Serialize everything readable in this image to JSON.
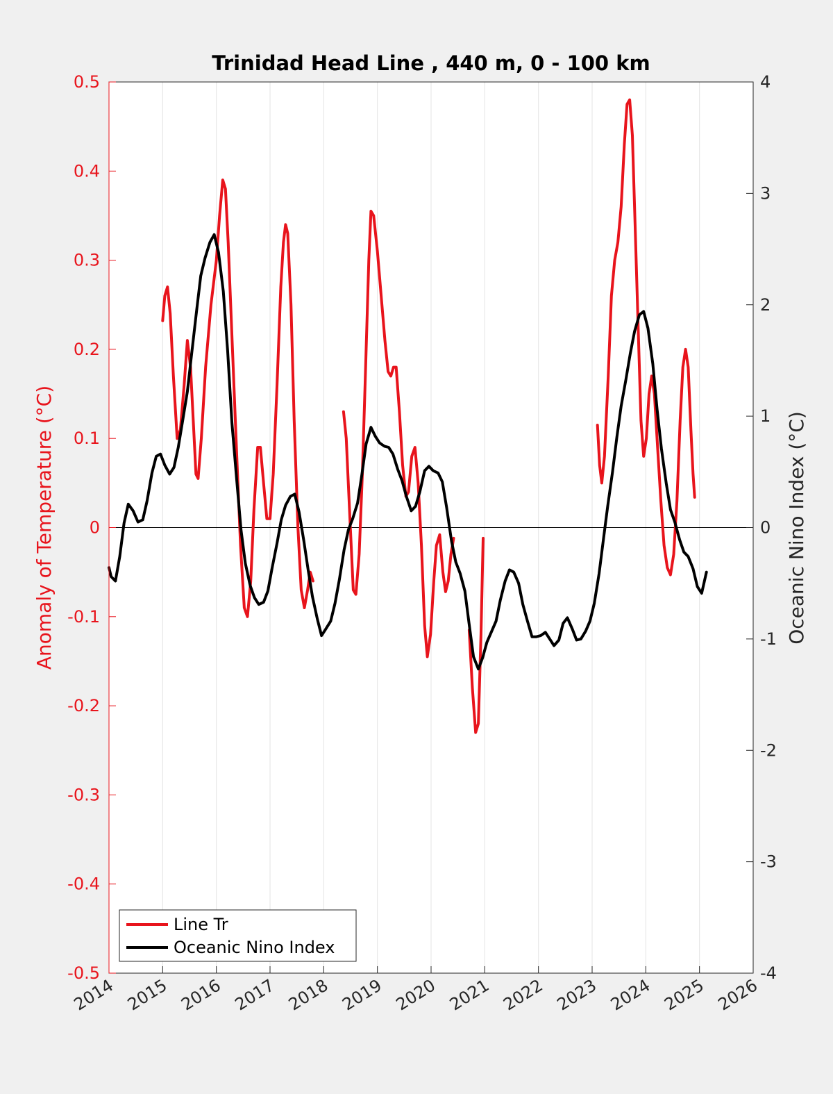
{
  "chart_data": {
    "type": "line",
    "title": "Trinidad Head Line , 440 m, 0 - 100 km",
    "ylabel": "Anomaly of Temperature (°C)",
    "y2label": "Oceanic Nino Index (°C)",
    "xlabel": "",
    "xlim": [
      2014,
      2026
    ],
    "ylim": [
      -0.5,
      0.5
    ],
    "y2lim": [
      -4,
      4
    ],
    "x_ticks": [
      "2014",
      "2015",
      "2016",
      "2017",
      "2018",
      "2019",
      "2020",
      "2021",
      "2022",
      "2023",
      "2024",
      "2025",
      "2026"
    ],
    "y_ticks": [
      "-0.5",
      "-0.4",
      "-0.3",
      "-0.2",
      "-0.1",
      "0",
      "0.1",
      "0.2",
      "0.3",
      "0.4",
      "0.5"
    ],
    "y2_ticks": [
      "-4",
      "-3",
      "-2",
      "-1",
      "0",
      "1",
      "2",
      "3",
      "4"
    ],
    "grid": "vertical",
    "legend_position": "bottom-left",
    "colors": {
      "line_tr": "#e8141c",
      "oni": "#000000",
      "left_axis": "#e8141c",
      "right_axis": "#262626"
    },
    "series": [
      {
        "name": "Line Tr",
        "axis": "left",
        "segments": [
          [
            [
              2015.0,
              0.232
            ],
            [
              2015.04,
              0.26
            ],
            [
              2015.09,
              0.27
            ],
            [
              2015.14,
              0.24
            ],
            [
              2015.2,
              0.17
            ],
            [
              2015.27,
              0.1
            ],
            [
              2015.33,
              0.11
            ],
            [
              2015.4,
              0.16
            ],
            [
              2015.46,
              0.21
            ],
            [
              2015.52,
              0.18
            ],
            [
              2015.57,
              0.12
            ],
            [
              2015.62,
              0.06
            ],
            [
              2015.66,
              0.055
            ],
            [
              2015.72,
              0.1
            ],
            [
              2015.8,
              0.18
            ],
            [
              2015.9,
              0.25
            ],
            [
              2016.0,
              0.3
            ],
            [
              2016.06,
              0.35
            ],
            [
              2016.12,
              0.39
            ],
            [
              2016.17,
              0.38
            ],
            [
              2016.22,
              0.32
            ],
            [
              2016.3,
              0.2
            ],
            [
              2016.38,
              0.08
            ],
            [
              2016.45,
              -0.02
            ],
            [
              2016.52,
              -0.09
            ],
            [
              2016.58,
              -0.1
            ],
            [
              2016.64,
              -0.06
            ],
            [
              2016.7,
              0.02
            ],
            [
              2016.77,
              0.09
            ],
            [
              2016.82,
              0.09
            ],
            [
              2016.88,
              0.05
            ],
            [
              2016.94,
              0.01
            ],
            [
              2017.0,
              0.01
            ],
            [
              2017.06,
              0.06
            ],
            [
              2017.13,
              0.16
            ],
            [
              2017.2,
              0.27
            ],
            [
              2017.25,
              0.32
            ],
            [
              2017.29,
              0.34
            ],
            [
              2017.33,
              0.33
            ],
            [
              2017.39,
              0.25
            ],
            [
              2017.45,
              0.12
            ],
            [
              2017.52,
              0.0
            ],
            [
              2017.58,
              -0.07
            ],
            [
              2017.64,
              -0.09
            ],
            [
              2017.7,
              -0.07
            ],
            [
              2017.75,
              -0.05
            ],
            [
              2017.8,
              -0.06
            ]
          ],
          [
            [
              2018.37,
              0.13
            ],
            [
              2018.42,
              0.1
            ],
            [
              2018.48,
              0.02
            ],
            [
              2018.55,
              -0.07
            ],
            [
              2018.6,
              -0.075
            ],
            [
              2018.66,
              -0.03
            ],
            [
              2018.72,
              0.06
            ],
            [
              2018.78,
              0.18
            ],
            [
              2018.84,
              0.3
            ],
            [
              2018.88,
              0.355
            ],
            [
              2018.93,
              0.35
            ],
            [
              2019.0,
              0.31
            ],
            [
              2019.07,
              0.26
            ],
            [
              2019.14,
              0.21
            ],
            [
              2019.2,
              0.175
            ],
            [
              2019.25,
              0.17
            ],
            [
              2019.3,
              0.18
            ],
            [
              2019.35,
              0.18
            ],
            [
              2019.41,
              0.13
            ],
            [
              2019.47,
              0.07
            ],
            [
              2019.53,
              0.035
            ],
            [
              2019.58,
              0.04
            ],
            [
              2019.64,
              0.08
            ],
            [
              2019.7,
              0.09
            ],
            [
              2019.76,
              0.05
            ],
            [
              2019.82,
              -0.02
            ],
            [
              2019.88,
              -0.11
            ],
            [
              2019.93,
              -0.145
            ],
            [
              2019.99,
              -0.12
            ],
            [
              2020.05,
              -0.06
            ],
            [
              2020.1,
              -0.02
            ],
            [
              2020.16,
              -0.008
            ],
            [
              2020.22,
              -0.05
            ],
            [
              2020.27,
              -0.072
            ],
            [
              2020.32,
              -0.06
            ],
            [
              2020.37,
              -0.03
            ],
            [
              2020.42,
              -0.012
            ]
          ],
          [
            [
              2020.71,
              -0.115
            ],
            [
              2020.77,
              -0.18
            ],
            [
              2020.83,
              -0.23
            ],
            [
              2020.88,
              -0.22
            ],
            [
              2020.93,
              -0.12
            ],
            [
              2020.97,
              -0.012
            ]
          ],
          [
            [
              2023.1,
              0.115
            ],
            [
              2023.14,
              0.07
            ],
            [
              2023.18,
              0.05
            ],
            [
              2023.23,
              0.08
            ],
            [
              2023.3,
              0.17
            ],
            [
              2023.36,
              0.26
            ],
            [
              2023.42,
              0.3
            ],
            [
              2023.48,
              0.32
            ],
            [
              2023.54,
              0.36
            ],
            [
              2023.6,
              0.43
            ],
            [
              2023.65,
              0.475
            ],
            [
              2023.7,
              0.48
            ],
            [
              2023.75,
              0.44
            ],
            [
              2023.8,
              0.34
            ],
            [
              2023.86,
              0.22
            ],
            [
              2023.91,
              0.12
            ],
            [
              2023.96,
              0.08
            ],
            [
              2024.01,
              0.1
            ],
            [
              2024.06,
              0.15
            ],
            [
              2024.11,
              0.17
            ],
            [
              2024.16,
              0.15
            ],
            [
              2024.22,
              0.09
            ],
            [
              2024.28,
              0.03
            ],
            [
              2024.34,
              -0.02
            ],
            [
              2024.4,
              -0.045
            ],
            [
              2024.46,
              -0.053
            ],
            [
              2024.52,
              -0.03
            ],
            [
              2024.58,
              0.03
            ],
            [
              2024.64,
              0.12
            ],
            [
              2024.69,
              0.18
            ],
            [
              2024.74,
              0.2
            ],
            [
              2024.79,
              0.18
            ],
            [
              2024.84,
              0.11
            ],
            [
              2024.88,
              0.06
            ],
            [
              2024.91,
              0.034
            ]
          ]
        ]
      },
      {
        "name": "Oceanic Nino Index",
        "axis": "right",
        "segments": [
          [
            [
              2014.0,
              -0.36
            ],
            [
              2014.04,
              -0.44
            ],
            [
              2014.12,
              -0.48
            ],
            [
              2014.2,
              -0.26
            ],
            [
              2014.28,
              0.04
            ],
            [
              2014.36,
              0.21
            ],
            [
              2014.45,
              0.15
            ],
            [
              2014.54,
              0.05
            ],
            [
              2014.63,
              0.07
            ],
            [
              2014.71,
              0.24
            ],
            [
              2014.8,
              0.49
            ],
            [
              2014.88,
              0.64
            ],
            [
              2014.96,
              0.66
            ],
            [
              2015.04,
              0.56
            ],
            [
              2015.13,
              0.48
            ],
            [
              2015.21,
              0.54
            ],
            [
              2015.29,
              0.72
            ],
            [
              2015.37,
              0.95
            ],
            [
              2015.46,
              1.22
            ],
            [
              2015.54,
              1.56
            ],
            [
              2015.63,
              1.94
            ],
            [
              2015.71,
              2.26
            ],
            [
              2015.79,
              2.42
            ],
            [
              2015.88,
              2.56
            ],
            [
              2015.96,
              2.63
            ],
            [
              2016.04,
              2.47
            ],
            [
              2016.13,
              2.12
            ],
            [
              2016.21,
              1.59
            ],
            [
              2016.29,
              0.94
            ],
            [
              2016.38,
              0.42
            ],
            [
              2016.46,
              -0.02
            ],
            [
              2016.54,
              -0.32
            ],
            [
              2016.63,
              -0.52
            ],
            [
              2016.71,
              -0.63
            ],
            [
              2016.79,
              -0.69
            ],
            [
              2016.88,
              -0.67
            ],
            [
              2016.96,
              -0.57
            ],
            [
              2017.04,
              -0.36
            ],
            [
              2017.13,
              -0.14
            ],
            [
              2017.21,
              0.07
            ],
            [
              2017.29,
              0.2
            ],
            [
              2017.38,
              0.28
            ],
            [
              2017.46,
              0.3
            ],
            [
              2017.54,
              0.14
            ],
            [
              2017.63,
              -0.12
            ],
            [
              2017.71,
              -0.38
            ],
            [
              2017.79,
              -0.62
            ],
            [
              2017.88,
              -0.82
            ],
            [
              2017.96,
              -0.97
            ],
            [
              2018.04,
              -0.91
            ],
            [
              2018.13,
              -0.84
            ],
            [
              2018.21,
              -0.68
            ],
            [
              2018.29,
              -0.47
            ],
            [
              2018.38,
              -0.2
            ],
            [
              2018.46,
              -0.02
            ],
            [
              2018.54,
              0.08
            ],
            [
              2018.63,
              0.22
            ],
            [
              2018.71,
              0.47
            ],
            [
              2018.79,
              0.75
            ],
            [
              2018.88,
              0.9
            ],
            [
              2018.96,
              0.82
            ],
            [
              2019.04,
              0.76
            ],
            [
              2019.13,
              0.73
            ],
            [
              2019.21,
              0.72
            ],
            [
              2019.29,
              0.66
            ],
            [
              2019.38,
              0.52
            ],
            [
              2019.46,
              0.42
            ],
            [
              2019.54,
              0.28
            ],
            [
              2019.63,
              0.15
            ],
            [
              2019.71,
              0.19
            ],
            [
              2019.79,
              0.32
            ],
            [
              2019.88,
              0.51
            ],
            [
              2019.96,
              0.55
            ],
            [
              2020.04,
              0.51
            ],
            [
              2020.13,
              0.49
            ],
            [
              2020.21,
              0.41
            ],
            [
              2020.29,
              0.18
            ],
            [
              2020.38,
              -0.12
            ],
            [
              2020.46,
              -0.31
            ],
            [
              2020.54,
              -0.41
            ],
            [
              2020.63,
              -0.57
            ],
            [
              2020.71,
              -0.87
            ],
            [
              2020.79,
              -1.16
            ],
            [
              2020.88,
              -1.27
            ],
            [
              2020.96,
              -1.17
            ],
            [
              2021.04,
              -1.03
            ],
            [
              2021.13,
              -0.93
            ],
            [
              2021.21,
              -0.84
            ],
            [
              2021.29,
              -0.65
            ],
            [
              2021.38,
              -0.48
            ],
            [
              2021.46,
              -0.38
            ],
            [
              2021.54,
              -0.4
            ],
            [
              2021.63,
              -0.5
            ],
            [
              2021.71,
              -0.69
            ],
            [
              2021.79,
              -0.83
            ],
            [
              2021.88,
              -0.98
            ],
            [
              2021.96,
              -0.98
            ],
            [
              2022.04,
              -0.97
            ],
            [
              2022.13,
              -0.94
            ],
            [
              2022.21,
              -1.0
            ],
            [
              2022.29,
              -1.06
            ],
            [
              2022.38,
              -1.01
            ],
            [
              2022.46,
              -0.86
            ],
            [
              2022.54,
              -0.81
            ],
            [
              2022.63,
              -0.91
            ],
            [
              2022.71,
              -1.01
            ],
            [
              2022.79,
              -1.0
            ],
            [
              2022.88,
              -0.93
            ],
            [
              2022.96,
              -0.84
            ],
            [
              2023.04,
              -0.68
            ],
            [
              2023.13,
              -0.41
            ],
            [
              2023.21,
              -0.11
            ],
            [
              2023.29,
              0.19
            ],
            [
              2023.38,
              0.5
            ],
            [
              2023.46,
              0.81
            ],
            [
              2023.54,
              1.09
            ],
            [
              2023.63,
              1.33
            ],
            [
              2023.71,
              1.56
            ],
            [
              2023.79,
              1.76
            ],
            [
              2023.88,
              1.91
            ],
            [
              2023.96,
              1.94
            ],
            [
              2024.04,
              1.79
            ],
            [
              2024.13,
              1.47
            ],
            [
              2024.21,
              1.06
            ],
            [
              2024.29,
              0.71
            ],
            [
              2024.38,
              0.4
            ],
            [
              2024.46,
              0.16
            ],
            [
              2024.54,
              0.05
            ],
            [
              2024.63,
              -0.11
            ],
            [
              2024.71,
              -0.22
            ],
            [
              2024.79,
              -0.26
            ],
            [
              2024.88,
              -0.37
            ],
            [
              2024.96,
              -0.53
            ],
            [
              2025.04,
              -0.59
            ],
            [
              2025.13,
              -0.4
            ]
          ]
        ]
      }
    ]
  }
}
